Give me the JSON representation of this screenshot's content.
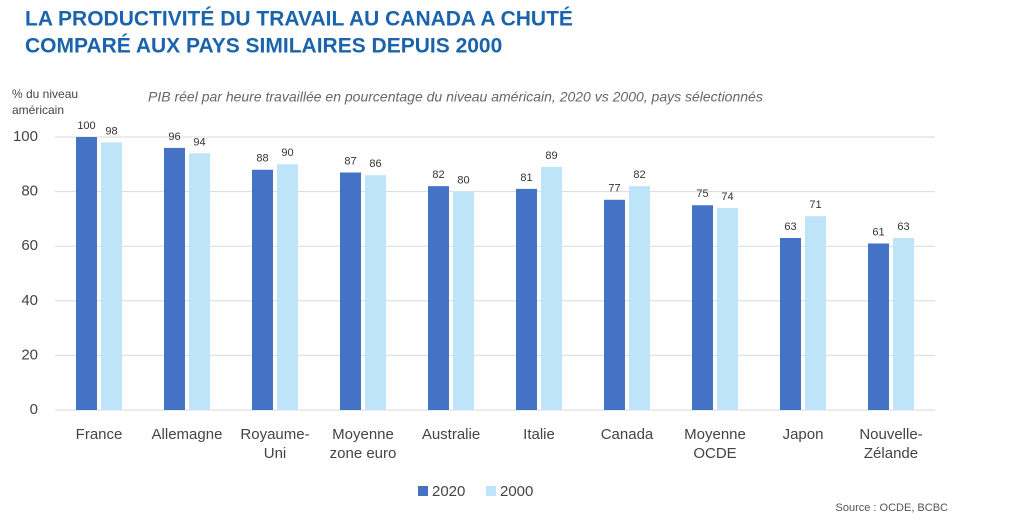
{
  "chart_data": {
    "type": "bar",
    "title": [
      "LA PRODUCTIVITÉ DU TRAVAIL AU CANADA A CHUTÉ",
      "COMPARÉ AUX PAYS SIMILAIRES DEPUIS 2000"
    ],
    "subtitle": "PIB réel par heure travaillée en pourcentage du niveau américain, 2020 vs 2000, pays sélectionnés",
    "y_label": [
      "% du niveau",
      "américain"
    ],
    "source": "Source : OCDE, BCBC",
    "categories": [
      [
        "France"
      ],
      [
        "Allemagne"
      ],
      [
        "Royaume-",
        "Uni"
      ],
      [
        "Moyenne",
        "zone euro"
      ],
      [
        "Australie"
      ],
      [
        "Italie"
      ],
      [
        "Canada"
      ],
      [
        "Moyenne",
        "OCDE"
      ],
      [
        "Japon"
      ],
      [
        "Nouvelle-",
        "Zélande"
      ]
    ],
    "series": [
      {
        "name": "2020",
        "color": "#4472c4",
        "values": [
          100,
          96,
          88,
          87,
          82,
          81,
          77,
          75,
          63,
          61
        ]
      },
      {
        "name": "2000",
        "color": "#bde4f8",
        "values": [
          98,
          94,
          90,
          86,
          80,
          89,
          82,
          74,
          71,
          63
        ]
      }
    ],
    "ylim": [
      0,
      100
    ],
    "yticks": [
      0,
      20,
      40,
      60,
      80,
      100
    ],
    "grid": true
  }
}
